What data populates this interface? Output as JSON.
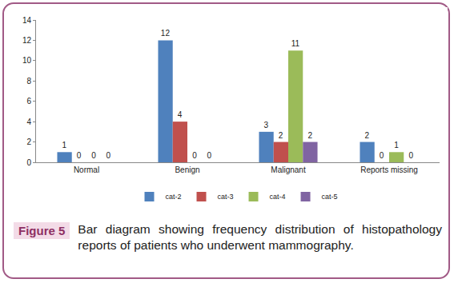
{
  "chart_data": {
    "type": "bar",
    "categories": [
      "Normal",
      "Benign",
      "Malignant",
      "Reports missing"
    ],
    "series": [
      {
        "name": "cat-2",
        "color": "#4f81bd",
        "values": [
          1,
          12,
          3,
          2
        ]
      },
      {
        "name": "cat-3",
        "color": "#c0504d",
        "values": [
          0,
          4,
          2,
          0
        ]
      },
      {
        "name": "cat-4",
        "color": "#9bbb59",
        "values": [
          0,
          0,
          11,
          1
        ]
      },
      {
        "name": "cat-5",
        "color": "#8064a2",
        "values": [
          0,
          0,
          2,
          0
        ]
      }
    ],
    "ylim": [
      0,
      14
    ],
    "yticks": [
      0,
      2,
      4,
      6,
      8,
      10,
      12,
      14
    ],
    "grid": false,
    "legend": "bottom",
    "data_labels": true
  },
  "figure": {
    "label": "Figure 5",
    "caption": "Bar diagram showing frequency distribution of histopathology reports of patients who underwent mammography."
  }
}
